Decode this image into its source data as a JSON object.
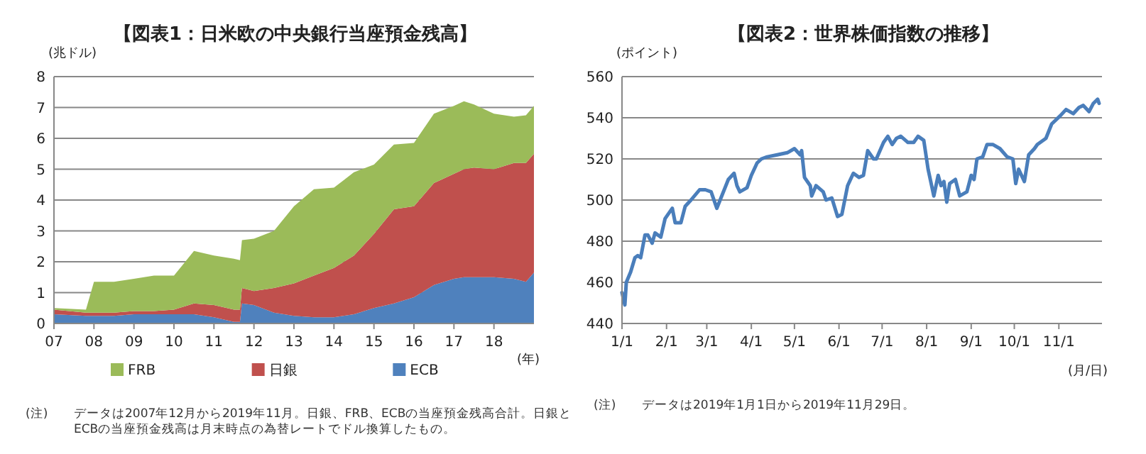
{
  "chart_data": [
    {
      "type": "area",
      "title": "【図表1：日米欧の中央銀行当座預金残高】",
      "ylabel": "(兆ドル)",
      "xlabel": "(年)",
      "stacked": true,
      "grid": "y",
      "legend": "bottom",
      "x": [
        2007,
        2007.8,
        2008,
        2008.5,
        2009,
        2009.5,
        2010,
        2010.5,
        2011,
        2011.5,
        2011.65,
        2011.7,
        2012,
        2012.5,
        2013,
        2013.5,
        2014,
        2014.5,
        2015,
        2015.5,
        2016,
        2016.5,
        2017,
        2017.25,
        2017.5,
        2018,
        2018.5,
        2018.8,
        2019
      ],
      "xlim": [
        2007,
        2019
      ],
      "xticks": [
        {
          "value": 2007,
          "label": "07"
        },
        {
          "value": 2008,
          "label": "08"
        },
        {
          "value": 2009,
          "label": "09"
        },
        {
          "value": 2010,
          "label": "10"
        },
        {
          "value": 2011,
          "label": "11"
        },
        {
          "value": 2012,
          "label": "12"
        },
        {
          "value": 2013,
          "label": "13"
        },
        {
          "value": 2014,
          "label": "14"
        },
        {
          "value": 2015,
          "label": "15"
        },
        {
          "value": 2016,
          "label": "16"
        },
        {
          "value": 2017,
          "label": "17"
        },
        {
          "value": 2018,
          "label": "18"
        }
      ],
      "ylim": [
        0,
        8
      ],
      "yticks": [
        0,
        1,
        2,
        3,
        4,
        5,
        6,
        7,
        8
      ],
      "series": [
        {
          "name": "ECB",
          "color": "#4f81bd",
          "values": [
            0.3,
            0.25,
            0.25,
            0.25,
            0.3,
            0.3,
            0.3,
            0.3,
            0.2,
            0.05,
            0.05,
            0.65,
            0.6,
            0.35,
            0.25,
            0.2,
            0.2,
            0.3,
            0.5,
            0.65,
            0.85,
            1.25,
            1.45,
            1.5,
            1.5,
            1.5,
            1.45,
            1.35,
            1.65
          ]
        },
        {
          "name": "日銀",
          "color": "#c0504d",
          "values": [
            0.15,
            0.1,
            0.1,
            0.1,
            0.1,
            0.1,
            0.15,
            0.35,
            0.4,
            0.4,
            0.4,
            0.5,
            0.45,
            0.8,
            1.05,
            1.35,
            1.6,
            1.9,
            2.4,
            3.05,
            2.95,
            3.3,
            3.4,
            3.5,
            3.55,
            3.5,
            3.75,
            3.85,
            3.85
          ]
        },
        {
          "name": "FRB",
          "color": "#9bbb59",
          "values": [
            0.05,
            0.1,
            1.0,
            1.0,
            1.05,
            1.15,
            1.1,
            1.7,
            1.6,
            1.65,
            1.6,
            1.55,
            1.7,
            1.85,
            2.5,
            2.8,
            2.6,
            2.7,
            2.25,
            2.1,
            2.05,
            2.25,
            2.2,
            2.2,
            2.05,
            1.8,
            1.5,
            1.55,
            1.55
          ]
        }
      ],
      "annotations": [
        "(注) データは2007年12月から2019年11月。日銀、FRB、ECBの当座預金残高合計。日銀とECBの当座預金残高は月末時点の為替レートでドル換算したもの。"
      ]
    },
    {
      "type": "line",
      "title": "【図表2：世界株価指数の推移】",
      "ylabel": "(ポイント)",
      "xlabel": "(月/日)",
      "grid": "y",
      "legend": false,
      "xlim": [
        "2019-01-01",
        "2019-12-01"
      ],
      "xticks": [
        {
          "value": "2019-01-01",
          "label": "1/1"
        },
        {
          "value": "2019-02-01",
          "label": "2/1"
        },
        {
          "value": "2019-03-01",
          "label": "3/1"
        },
        {
          "value": "2019-04-01",
          "label": "4/1"
        },
        {
          "value": "2019-05-01",
          "label": "5/1"
        },
        {
          "value": "2019-06-01",
          "label": "6/1"
        },
        {
          "value": "2019-07-01",
          "label": "7/1"
        },
        {
          "value": "2019-08-01",
          "label": "8/1"
        },
        {
          "value": "2019-09-01",
          "label": "9/1"
        },
        {
          "value": "2019-10-01",
          "label": "10/1"
        },
        {
          "value": "2019-11-01",
          "label": "11/1"
        }
      ],
      "ylim": [
        440,
        560
      ],
      "yticks": [
        440,
        460,
        480,
        500,
        520,
        540,
        560
      ],
      "x": [
        "2019-01-01",
        "2019-01-03",
        "2019-01-04",
        "2019-01-07",
        "2019-01-10",
        "2019-01-12",
        "2019-01-14",
        "2019-01-17",
        "2019-01-19",
        "2019-01-22",
        "2019-01-24",
        "2019-01-28",
        "2019-01-31",
        "2019-02-03",
        "2019-02-05",
        "2019-02-07",
        "2019-02-11",
        "2019-02-14",
        "2019-02-18",
        "2019-02-24",
        "2019-02-28",
        "2019-03-04",
        "2019-03-08",
        "2019-03-12",
        "2019-03-16",
        "2019-03-20",
        "2019-03-22",
        "2019-03-24",
        "2019-03-29",
        "2019-04-01",
        "2019-04-05",
        "2019-04-08",
        "2019-04-12",
        "2019-04-19",
        "2019-04-26",
        "2019-05-01",
        "2019-05-05",
        "2019-05-06",
        "2019-05-08",
        "2019-05-12",
        "2019-05-13",
        "2019-05-16",
        "2019-05-21",
        "2019-05-23",
        "2019-05-27",
        "2019-05-31",
        "2019-06-03",
        "2019-06-07",
        "2019-06-11",
        "2019-06-15",
        "2019-06-18",
        "2019-06-21",
        "2019-06-25",
        "2019-06-27",
        "2019-07-02",
        "2019-07-05",
        "2019-07-08",
        "2019-07-11",
        "2019-07-14",
        "2019-07-19",
        "2019-07-23",
        "2019-07-26",
        "2019-07-30",
        "2019-08-02",
        "2019-08-06",
        "2019-08-09",
        "2019-08-11",
        "2019-08-13",
        "2019-08-15",
        "2019-08-17",
        "2019-08-21",
        "2019-08-24",
        "2019-08-29",
        "2019-09-01",
        "2019-09-03",
        "2019-09-05",
        "2019-09-09",
        "2019-09-12",
        "2019-09-16",
        "2019-09-21",
        "2019-09-26",
        "2019-09-30",
        "2019-10-02",
        "2019-10-04",
        "2019-10-08",
        "2019-10-11",
        "2019-10-15",
        "2019-10-17",
        "2019-10-23",
        "2019-10-27",
        "2019-11-02",
        "2019-11-06",
        "2019-11-11",
        "2019-11-15",
        "2019-11-18",
        "2019-11-22",
        "2019-11-25",
        "2019-11-28",
        "2019-11-29"
      ],
      "series": [
        {
          "color": "#4a7ebb",
          "values": [
            455,
            449,
            460,
            465,
            472,
            473,
            472,
            483,
            483,
            479,
            484,
            482,
            491,
            494,
            496,
            489,
            489,
            497,
            500,
            505,
            505,
            504,
            496,
            503,
            510,
            513,
            507,
            504,
            506,
            512,
            518,
            520,
            521,
            522,
            523,
            525,
            522,
            524,
            511,
            507,
            502,
            507,
            504,
            500,
            501,
            492,
            493,
            507,
            513,
            511,
            512,
            524,
            520,
            520,
            528,
            531,
            527,
            530,
            531,
            528,
            528,
            531,
            529,
            515,
            502,
            512,
            507,
            509,
            499,
            508,
            510,
            502,
            504,
            512,
            510,
            520,
            521,
            527,
            527,
            525,
            521,
            520,
            508,
            515,
            509,
            522,
            525,
            527,
            530,
            537,
            541,
            544,
            542,
            545,
            546,
            543,
            547,
            549,
            547
          ]
        }
      ],
      "annotations": [
        "(注) データは2019年1月1日から2019年11月29日。"
      ]
    }
  ]
}
